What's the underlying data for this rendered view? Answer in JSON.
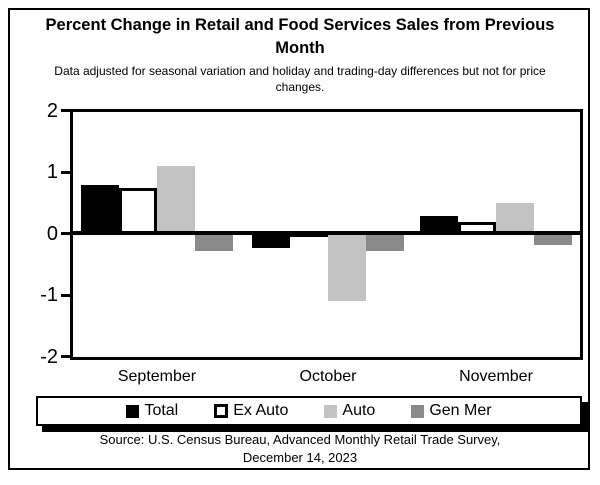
{
  "page": {
    "title": "Percent Change in Retail and Food Services Sales from Previous Month",
    "subtitle": "Data adjusted for seasonal variation and holiday and trading-day differences but not for price changes.",
    "source_line1": "Source: U.S. Census Bureau, Advanced Monthly Retail Trade Survey,",
    "source_line2": "December 14, 2023"
  },
  "colors": {
    "bar_black": "#000000",
    "bar_white": "#ffffff",
    "bar_light_gray": "#c2c2c2",
    "bar_dark_gray": "#8a8a8a",
    "frame": "#000000",
    "background": "#ffffff"
  },
  "chart_data": {
    "type": "bar",
    "title": "Percent Change in Retail and Food Services Sales from Previous Month",
    "subtitle": "Data adjusted for seasonal variation and holiday and trading-day differences but not for price changes.",
    "source": "Source: U.S. Census Bureau, Advanced Monthly Retail Trade Survey, December 14, 2023",
    "categories": [
      "September",
      "October",
      "November"
    ],
    "series": [
      {
        "name": "Total",
        "color": "#000000",
        "outline": false,
        "values": [
          0.8,
          -0.25,
          0.3
        ]
      },
      {
        "name": "Ex Auto",
        "color": "#ffffff",
        "outline": true,
        "values": [
          0.75,
          0.05,
          0.2
        ]
      },
      {
        "name": "Auto",
        "color": "#c2c2c2",
        "outline": false,
        "values": [
          1.1,
          -1.1,
          0.5
        ]
      },
      {
        "name": "Gen Mer",
        "color": "#8a8a8a",
        "outline": false,
        "values": [
          -0.3,
          -0.3,
          -0.2
        ]
      }
    ],
    "ylim": [
      -2,
      2
    ],
    "yticks": [
      2,
      1,
      0,
      -1,
      -2
    ],
    "xlabel": "",
    "ylabel": "",
    "grid": false,
    "legend_position": "bottom"
  }
}
